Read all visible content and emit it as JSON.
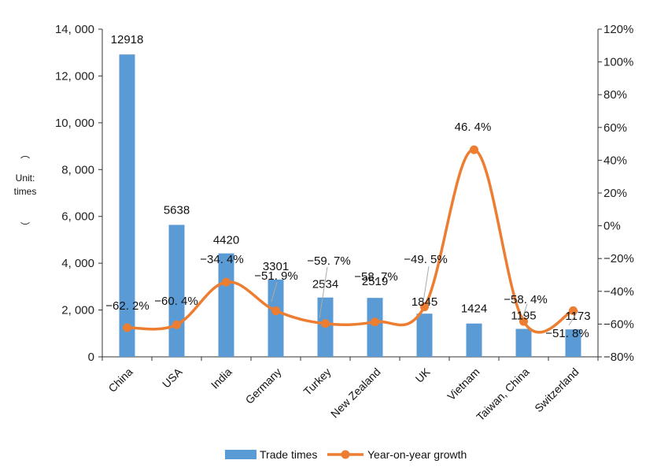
{
  "chart_data": {
    "type": "bar",
    "categories": [
      "China",
      "USA",
      "India",
      "Germany",
      "Turkey",
      "New Zealand",
      "UK",
      "Vietnam",
      "Taiwan, China",
      "Switzerland"
    ],
    "series": [
      {
        "name": "Trade times",
        "type": "bar",
        "axis": "left",
        "values": [
          12918,
          5638,
          4420,
          3301,
          2534,
          2519,
          1845,
          1424,
          1195,
          1173
        ],
        "labels": [
          "12918",
          "5638",
          "4420",
          "3301",
          "2534",
          "2519",
          "1845",
          "1424",
          "1195",
          "1173"
        ],
        "color": "#5b9bd5"
      },
      {
        "name": "Year-on-year growth",
        "type": "line",
        "axis": "right",
        "values": [
          -62.2,
          -60.4,
          -34.4,
          -51.9,
          -59.7,
          -58.7,
          -49.5,
          46.4,
          -58.4,
          -51.8
        ],
        "labels": [
          "−62. 2%",
          "−60. 4%",
          "−34. 4%",
          "−51. 9%",
          "−59. 7%",
          "−58. 7%",
          "−49. 5%",
          "46. 4%",
          "−58. 4%",
          "−51. 8%"
        ],
        "color": "#ed7d31"
      }
    ],
    "y_left": {
      "min": 0,
      "max": 14000,
      "ticks": [
        0,
        2000,
        4000,
        6000,
        8000,
        10000,
        12000,
        14000
      ],
      "tick_labels": [
        "0",
        "2, 000",
        "4, 000",
        "6, 000",
        "8, 000",
        "10, 000",
        "12, 000",
        "14, 000"
      ],
      "label_lines": [
        "︵",
        "Unit:",
        "times",
        "︶"
      ]
    },
    "y_right": {
      "min": -80,
      "max": 120,
      "ticks": [
        -80,
        -60,
        -40,
        -20,
        0,
        20,
        40,
        60,
        80,
        100,
        120
      ],
      "tick_labels": [
        "−80%",
        "−60%",
        "−40%",
        "−20%",
        "0%",
        "20%",
        "40%",
        "60%",
        "80%",
        "100%",
        "120%"
      ]
    },
    "legend": {
      "position": "bottom",
      "entries": [
        "Trade times",
        "Year-on-year growth"
      ]
    },
    "grid": false
  }
}
